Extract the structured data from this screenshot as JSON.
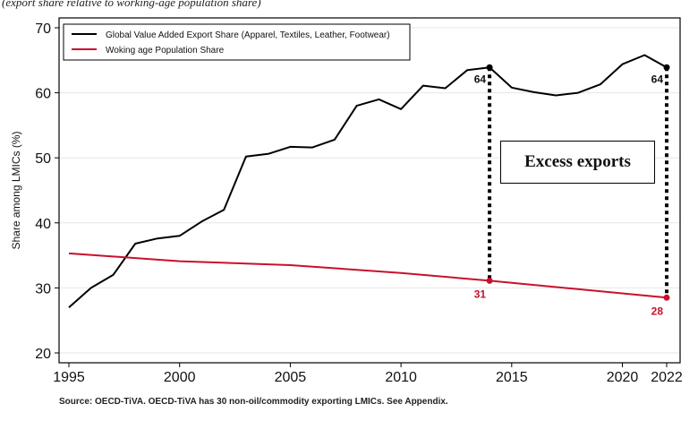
{
  "subtitle": "(export share relative to working-age population share)",
  "source": "Source: OECD-TiVA. OECD-TiVA has 30 non-oil/commodity exporting LMICs. See Appendix.",
  "annotation": "Excess exports",
  "colors": {
    "export": "#000000",
    "population": "#c8102e"
  },
  "chart_data": {
    "type": "line",
    "ylabel": "Share among LMICs (%)",
    "xlabel": "",
    "ylim": [
      20,
      70
    ],
    "xlim": [
      1995,
      2022
    ],
    "yticks": [
      20,
      30,
      40,
      50,
      60,
      70
    ],
    "xticks": [
      1995,
      2000,
      2005,
      2010,
      2015,
      2020,
      2022
    ],
    "grid": true,
    "legend_position": "top-left",
    "series": [
      {
        "name": "Global Value Added Export Share (Apparel, Textiles, Leather, Footwear)",
        "x": [
          1995,
          1996,
          1997,
          1998,
          1999,
          2000,
          2001,
          2002,
          2003,
          2004,
          2005,
          2006,
          2007,
          2008,
          2009,
          2010,
          2011,
          2012,
          2013,
          2014,
          2015,
          2016,
          2017,
          2018,
          2019,
          2020,
          2021,
          2022
        ],
        "values": [
          27.0,
          30.0,
          32.0,
          36.8,
          37.6,
          38.0,
          40.2,
          42.0,
          50.2,
          50.6,
          51.7,
          51.6,
          52.8,
          58.0,
          59.0,
          57.5,
          61.1,
          60.7,
          63.5,
          63.9,
          60.8,
          60.1,
          59.6,
          60.0,
          61.3,
          64.4,
          65.8,
          63.9
        ]
      },
      {
        "name": "Woking age Population Share",
        "x": [
          1995,
          2000,
          2005,
          2010,
          2014,
          2022
        ],
        "values": [
          35.3,
          34.1,
          33.5,
          32.3,
          31.1,
          28.5
        ]
      }
    ],
    "annotations": [
      {
        "x": 2014,
        "export_label": "64",
        "population_label": "31"
      },
      {
        "x": 2022,
        "export_label": "64",
        "population_label": "28"
      }
    ]
  }
}
